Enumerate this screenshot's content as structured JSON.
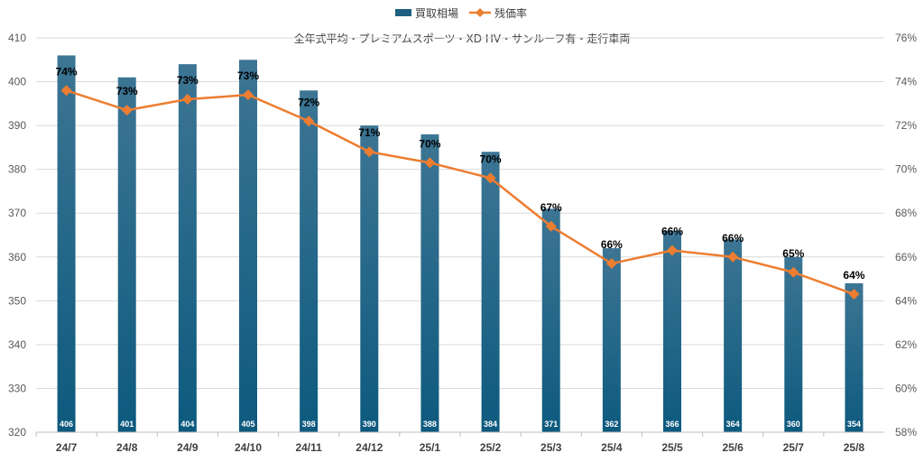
{
  "chart_data": {
    "type": "bar",
    "title": "全年式平均・プレミアムスポーツ・XD HV・サンルーフ有・走行車両",
    "legend_position": "top",
    "categories": [
      "24/7",
      "24/8",
      "24/9",
      "24/10",
      "24/11",
      "24/12",
      "25/1",
      "25/2",
      "25/3",
      "25/4",
      "25/5",
      "25/6",
      "25/7",
      "25/8"
    ],
    "series": [
      {
        "name": "買取相場",
        "type": "bar",
        "axis": "left",
        "color": "#1f5f7f",
        "values": [
          406,
          401,
          404,
          405,
          398,
          390,
          388,
          384,
          371,
          362,
          366,
          364,
          360,
          354
        ],
        "labels": [
          "406",
          "401",
          "404",
          "405",
          "398",
          "390",
          "388",
          "384",
          "371",
          "362",
          "366",
          "364",
          "360",
          "354"
        ]
      },
      {
        "name": "残価率",
        "type": "line",
        "axis": "right",
        "color": "#ed7d31",
        "values": [
          73.6,
          72.7,
          73.2,
          73.4,
          72.2,
          70.8,
          70.3,
          69.6,
          67.4,
          65.7,
          66.3,
          66.0,
          65.3,
          64.3
        ],
        "labels": [
          "74%",
          "73%",
          "73%",
          "73%",
          "72%",
          "71%",
          "70%",
          "70%",
          "67%",
          "66%",
          "66%",
          "66%",
          "65%",
          "64%"
        ]
      }
    ],
    "y_left": {
      "range": [
        320,
        410
      ],
      "ticks": [
        "320",
        "330",
        "340",
        "350",
        "360",
        "370",
        "380",
        "390",
        "400",
        "410"
      ]
    },
    "y_right": {
      "range": [
        58,
        76
      ],
      "ticks": [
        "58%",
        "60%",
        "62%",
        "64%",
        "66%",
        "68%",
        "70%",
        "72%",
        "74%",
        "76%"
      ]
    },
    "grid": true
  }
}
